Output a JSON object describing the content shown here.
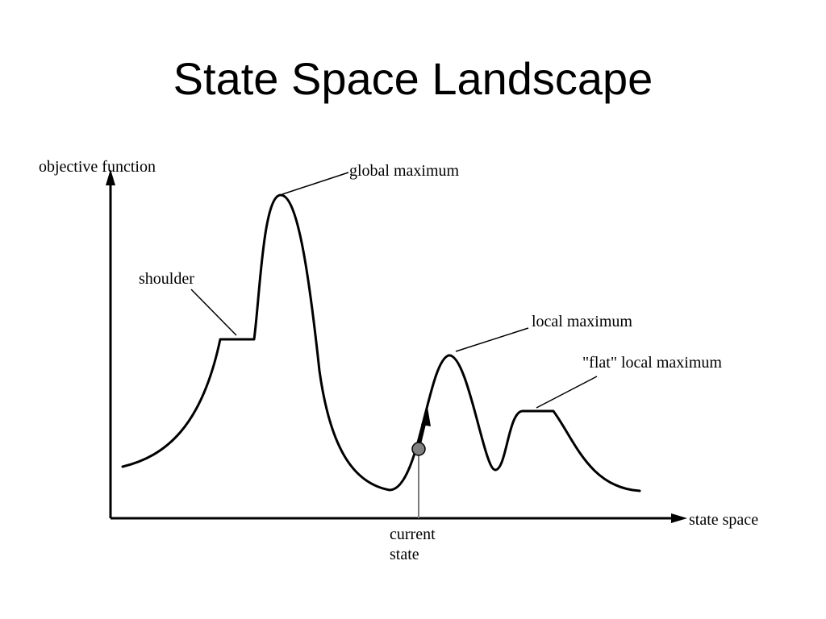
{
  "title": "State Space Landscape",
  "diagram": {
    "y_axis_label": "objective function",
    "x_axis_label": "state space",
    "labels": {
      "global_maximum": "global maximum",
      "shoulder": "shoulder",
      "local_maximum": "local maximum",
      "flat_local_maximum": "\"flat\" local maximum",
      "current_state_line1": "current",
      "current_state_line2": "state"
    },
    "colors": {
      "line": "#000000",
      "marker_fill": "#808080"
    }
  }
}
